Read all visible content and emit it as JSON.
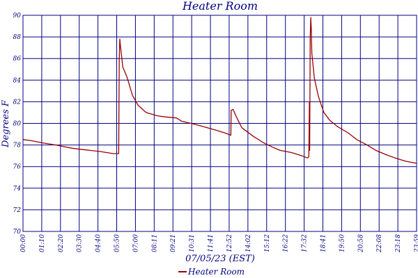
{
  "chart_data": {
    "type": "line",
    "title": "Heater Room",
    "xlabel": "07/05/23 (EST)",
    "ylabel": "Degrees F",
    "ylim": [
      70,
      90
    ],
    "yticks": [
      70,
      72,
      74,
      76,
      78,
      80,
      82,
      84,
      86,
      88,
      90
    ],
    "xlim": [
      "00:00",
      "23:59"
    ],
    "xtick_labels": [
      "00:00",
      "01:10",
      "02:20",
      "03:30",
      "04:40",
      "05:50",
      "07:00",
      "08:11",
      "09:21",
      "10:31",
      "11:41",
      "12:52",
      "14:02",
      "15:12",
      "16:22",
      "17:32",
      "18:41",
      "19:50",
      "20:58",
      "22:08",
      "23:18",
      "23:59"
    ],
    "grid": true,
    "legend_position": "bottom-center",
    "colors": {
      "line": "#990000",
      "grid": "#000080",
      "text": "#000080"
    },
    "series": [
      {
        "name": "Heater Room",
        "x": [
          "00:00",
          "00:30",
          "01:10",
          "02:00",
          "02:20",
          "03:00",
          "03:30",
          "04:40",
          "05:30",
          "05:50",
          "05:51",
          "05:52",
          "05:54",
          "05:56",
          "06:05",
          "06:20",
          "06:40",
          "07:00",
          "07:30",
          "08:11",
          "08:40",
          "09:21",
          "09:40",
          "10:31",
          "11:00",
          "11:41",
          "12:20",
          "12:40",
          "12:41",
          "12:48",
          "13:00",
          "13:20",
          "14:02",
          "14:40",
          "15:12",
          "15:40",
          "16:22",
          "17:00",
          "17:20",
          "17:25",
          "17:27",
          "17:28",
          "17:30",
          "17:32",
          "17:34",
          "17:36",
          "17:45",
          "18:00",
          "18:20",
          "18:41",
          "19:10",
          "19:50",
          "20:20",
          "20:58",
          "21:30",
          "22:08",
          "22:40",
          "23:18",
          "23:59"
        ],
        "y": [
          78.5,
          78.4,
          78.2,
          78.0,
          77.9,
          77.7,
          77.6,
          77.4,
          77.2,
          77.2,
          82.0,
          86.0,
          87.8,
          87.2,
          85.2,
          84.3,
          82.6,
          81.7,
          81.0,
          80.7,
          80.6,
          80.5,
          80.2,
          79.9,
          79.7,
          79.4,
          79.1,
          78.9,
          81.2,
          81.3,
          80.6,
          79.6,
          78.8,
          78.2,
          77.8,
          77.5,
          77.3,
          77.0,
          76.8,
          76.9,
          82.0,
          77.5,
          88.0,
          89.8,
          88.8,
          86.5,
          84.2,
          82.5,
          81.0,
          80.3,
          79.7,
          79.1,
          78.5,
          78.0,
          77.5,
          77.1,
          76.8,
          76.5,
          76.3
        ]
      }
    ]
  }
}
